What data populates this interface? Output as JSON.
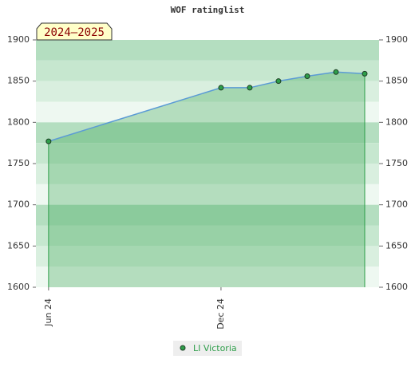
{
  "chart_data": {
    "type": "area",
    "title": "WOF ratinglist",
    "season_label": "2024–2025",
    "x": [
      0,
      6,
      7,
      8,
      9,
      10,
      11
    ],
    "xlim": [
      -0.44,
      11.5
    ],
    "xticks": [
      {
        "value": 0,
        "label": "Jun 24"
      },
      {
        "value": 6,
        "label": "Dec 24"
      }
    ],
    "series": [
      {
        "name": "LI Victoria",
        "color": "#2e9e4a",
        "line_color": "#5b9bd5",
        "values": [
          1777,
          1842,
          1842,
          1850,
          1856,
          1861,
          1859
        ]
      }
    ],
    "ylim": [
      1600,
      1900
    ],
    "yticks": [
      1600,
      1650,
      1700,
      1750,
      1800,
      1850,
      1900
    ],
    "right_axis": true
  }
}
